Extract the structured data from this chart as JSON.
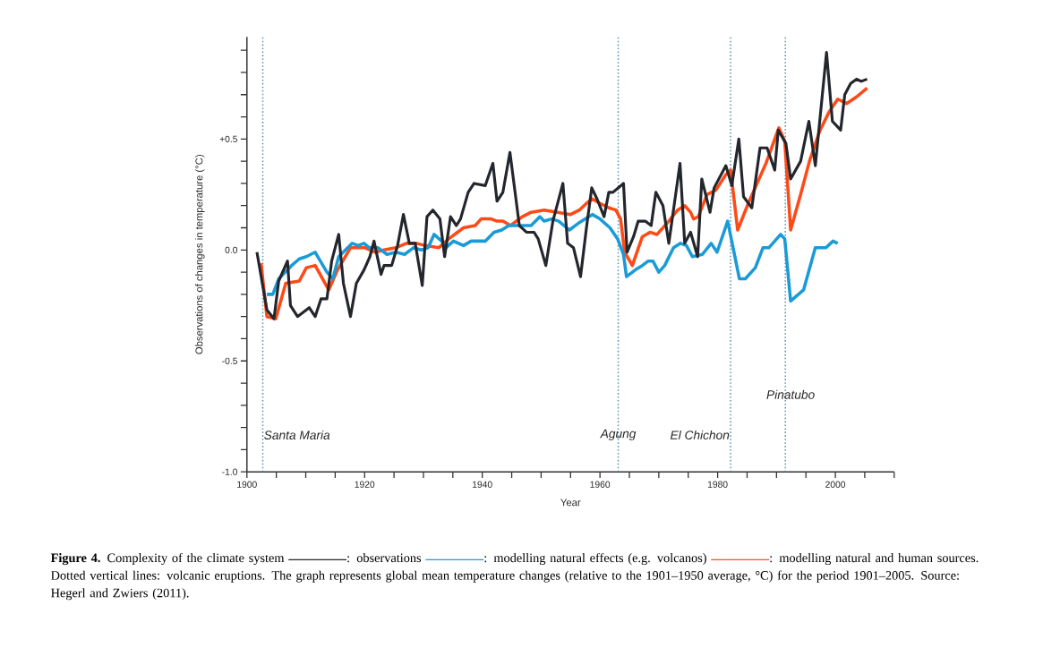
{
  "chart_data": {
    "type": "line",
    "xlabel": "Year",
    "ylabel": "Observations of changes in temperature (°C)",
    "xlim": [
      1900,
      2010
    ],
    "ylim": [
      -1.0,
      0.96
    ],
    "xticks": [
      1900,
      {
        "value": 1905,
        "label": null
      },
      {
        "value": 1910,
        "label": null
      },
      {
        "value": 1915,
        "label": null
      },
      1920,
      {
        "value": 1925,
        "label": null
      },
      {
        "value": 1930,
        "label": null
      },
      {
        "value": 1935,
        "label": null
      },
      1940,
      {
        "value": 1945,
        "label": null
      },
      {
        "value": 1950,
        "label": null
      },
      {
        "value": 1955,
        "label": null
      },
      1960,
      {
        "value": 1965,
        "label": null
      },
      {
        "value": 1970,
        "label": null
      },
      {
        "value": 1975,
        "label": null
      },
      1980,
      {
        "value": 1985,
        "label": null
      },
      {
        "value": 1990,
        "label": null
      },
      {
        "value": 1995,
        "label": null
      },
      2000,
      {
        "value": 2005,
        "label": null
      },
      {
        "value": 2010,
        "label": null
      }
    ],
    "yticks": [
      {
        "value": -1.0,
        "label": "-1.0"
      },
      {
        "value": -0.9,
        "label": null
      },
      {
        "value": -0.8,
        "label": null
      },
      {
        "value": -0.7,
        "label": null
      },
      {
        "value": -0.6,
        "label": null
      },
      {
        "value": -0.5,
        "label": "-0.5"
      },
      {
        "value": -0.4,
        "label": null
      },
      {
        "value": -0.3,
        "label": null
      },
      {
        "value": -0.2,
        "label": null
      },
      {
        "value": -0.1,
        "label": null
      },
      {
        "value": 0.0,
        "label": "0.0"
      },
      {
        "value": 0.1,
        "label": null
      },
      {
        "value": 0.2,
        "label": null
      },
      {
        "value": 0.3,
        "label": null
      },
      {
        "value": 0.4,
        "label": null
      },
      {
        "value": 0.5,
        "label": "+0.5"
      },
      {
        "value": 0.6,
        "label": null
      },
      {
        "value": 0.7,
        "label": null
      },
      {
        "value": 0.8,
        "label": null
      },
      {
        "value": 0.9,
        "label": null
      }
    ],
    "marker": "none",
    "line_style": "solid",
    "legend": "bottom",
    "series": [
      {
        "name": ": observations",
        "color": "#23262d",
        "x": [
          1901.7,
          1903.4,
          1904.6,
          1905.4,
          1906.9,
          1907.4,
          1908.6,
          1910.6,
          1911.6,
          1912.6,
          1913.6,
          1914.4,
          1915.6,
          1916.4,
          1917.6,
          1918.6,
          1919.9,
          1920.9,
          1921.6,
          1922.8,
          1923.3,
          1924.6,
          1925.6,
          1926.6,
          1927.6,
          1928.6,
          1929.8,
          1930.6,
          1931.6,
          1932.8,
          1933.6,
          1934.6,
          1935.6,
          1936.3,
          1937.6,
          1938.6,
          1940.5,
          1941.8,
          1942.5,
          1943.5,
          1944.7,
          1946.3,
          1947.5,
          1948.8,
          1949.5,
          1950.8,
          1952.0,
          1953.7,
          1954.5,
          1955.5,
          1956.7,
          1957.7,
          1958.6,
          1959.5,
          1960.7,
          1961.5,
          1962.2,
          1964.0,
          1964.6,
          1965.7,
          1966.5,
          1967.7,
          1968.7,
          1969.5,
          1970.7,
          1971.7,
          1973.6,
          1974.4,
          1975.4,
          1976.6,
          1977.3,
          1978.7,
          1979.4,
          1981.4,
          1982.4,
          1983.6,
          1984.4,
          1985.8,
          1987.2,
          1988.4,
          1989.7,
          1990.3,
          1991.6,
          1992.4,
          1994.1,
          1995.5,
          1996.6,
          1998.5,
          1999.5,
          2000.9,
          2001.6,
          2002.6,
          2003.6,
          2004.4,
          2005.4
        ],
        "values": [
          -0.01,
          -0.27,
          -0.31,
          -0.14,
          -0.05,
          -0.25,
          -0.3,
          -0.26,
          -0.3,
          -0.22,
          -0.22,
          -0.05,
          0.07,
          -0.15,
          -0.3,
          -0.15,
          -0.09,
          -0.03,
          0.04,
          -0.11,
          -0.07,
          -0.07,
          0.02,
          0.16,
          0.03,
          0.03,
          -0.16,
          0.15,
          0.18,
          0.14,
          -0.03,
          0.15,
          0.11,
          0.14,
          0.26,
          0.3,
          0.29,
          0.39,
          0.22,
          0.26,
          0.44,
          0.11,
          0.08,
          0.08,
          0.05,
          -0.07,
          0.13,
          0.3,
          0.03,
          0.01,
          -0.12,
          0.1,
          0.28,
          0.23,
          0.15,
          0.26,
          0.26,
          0.3,
          -0.01,
          0.06,
          0.13,
          0.13,
          0.11,
          0.26,
          0.2,
          0.03,
          0.39,
          0.03,
          0.08,
          -0.03,
          0.32,
          0.17,
          0.28,
          0.38,
          0.29,
          0.5,
          0.24,
          0.19,
          0.46,
          0.46,
          0.36,
          0.54,
          0.48,
          0.32,
          0.4,
          0.58,
          0.38,
          0.89,
          0.58,
          0.54,
          0.7,
          0.75,
          0.77,
          0.76,
          0.77
        ]
      },
      {
        "name": ": modelling natural effects (e.g. volcanos)",
        "color": "#1a9bd7",
        "x": [
          1903.4,
          1904.4,
          1905.4,
          1907.6,
          1908.9,
          1910.1,
          1911.6,
          1913.6,
          1914.6,
          1915.6,
          1917.9,
          1918.9,
          1919.9,
          1920.8,
          1922.3,
          1923.8,
          1925.3,
          1926.8,
          1928.3,
          1929.6,
          1930.8,
          1931.8,
          1933.1,
          1933.8,
          1935.1,
          1936.8,
          1938.1,
          1940.5,
          1942.0,
          1943.3,
          1944.5,
          1946.5,
          1948.3,
          1949.8,
          1950.5,
          1951.8,
          1953.0,
          1954.8,
          1956.3,
          1957.5,
          1958.7,
          1960.0,
          1961.7,
          1963.0,
          1964.0,
          1964.5,
          1966.0,
          1967.2,
          1968.2,
          1969.0,
          1970.0,
          1971.0,
          1972.5,
          1973.7,
          1974.7,
          1975.7,
          1977.4,
          1978.9,
          1979.9,
          1981.7,
          1983.7,
          1984.7,
          1986.4,
          1987.7,
          1988.7,
          1990.7,
          1991.4,
          1992.4,
          1994.6,
          1996.6,
          1998.4,
          1999.6,
          2000.4
        ],
        "values": [
          -0.2,
          -0.2,
          -0.13,
          -0.07,
          -0.04,
          -0.03,
          -0.01,
          -0.1,
          -0.13,
          -0.03,
          0.03,
          0.02,
          0.03,
          0.01,
          0.01,
          -0.02,
          -0.01,
          -0.02,
          0.01,
          0.0,
          0.01,
          0.07,
          0.04,
          0.01,
          0.04,
          0.02,
          0.04,
          0.04,
          0.08,
          0.09,
          0.11,
          0.11,
          0.11,
          0.15,
          0.13,
          0.14,
          0.13,
          0.09,
          0.12,
          0.14,
          0.16,
          0.14,
          0.1,
          0.05,
          -0.02,
          -0.12,
          -0.09,
          -0.07,
          -0.05,
          -0.05,
          -0.1,
          -0.07,
          0.01,
          0.03,
          0.02,
          -0.03,
          -0.02,
          0.03,
          -0.01,
          0.13,
          -0.13,
          -0.13,
          -0.08,
          0.01,
          0.01,
          0.07,
          0.05,
          -0.23,
          -0.18,
          0.01,
          0.01,
          0.04,
          0.03
        ]
      },
      {
        "name": ": modelling natural and human sources.",
        "color": "#ff4a17",
        "x": [
          1902.4,
          1903.4,
          1904.9,
          1906.6,
          1908.9,
          1910.1,
          1911.6,
          1913.9,
          1915.4,
          1917.6,
          1920.1,
          1921.8,
          1923.3,
          1925.3,
          1927.1,
          1928.8,
          1930.3,
          1932.6,
          1934.3,
          1936.8,
          1938.8,
          1939.8,
          1941.5,
          1942.5,
          1943.5,
          1944.8,
          1946.8,
          1948.3,
          1950.5,
          1952.8,
          1955.0,
          1956.5,
          1957.7,
          1958.7,
          1960.0,
          1961.5,
          1962.7,
          1963.5,
          1964.2,
          1965.5,
          1967.2,
          1968.5,
          1969.7,
          1971.7,
          1973.2,
          1974.4,
          1975.4,
          1975.9,
          1976.7,
          1978.2,
          1979.7,
          1981.4,
          1982.2,
          1983.4,
          1985.2,
          1986.7,
          1988.2,
          1990.4,
          1991.4,
          1992.4,
          1994.1,
          1995.6,
          1997.4,
          1998.9,
          2000.4,
          2001.9,
          2003.6,
          2005.4
        ],
        "values": [
          -0.06,
          -0.3,
          -0.31,
          -0.15,
          -0.14,
          -0.08,
          -0.07,
          -0.18,
          -0.09,
          0.01,
          0.01,
          -0.01,
          0.0,
          0.01,
          0.03,
          0.03,
          0.02,
          0.01,
          0.05,
          0.1,
          0.11,
          0.14,
          0.14,
          0.13,
          0.13,
          0.11,
          0.15,
          0.17,
          0.18,
          0.17,
          0.16,
          0.18,
          0.21,
          0.23,
          0.21,
          0.19,
          0.18,
          0.14,
          -0.01,
          -0.07,
          0.06,
          0.08,
          0.07,
          0.13,
          0.18,
          0.2,
          0.17,
          0.14,
          0.15,
          0.25,
          0.27,
          0.34,
          0.36,
          0.09,
          0.21,
          0.3,
          0.39,
          0.55,
          0.49,
          0.09,
          0.25,
          0.4,
          0.54,
          0.62,
          0.68,
          0.66,
          0.69,
          0.73
        ]
      }
    ],
    "ref_lines": [
      {
        "axis": "x",
        "value": 1902.7,
        "color": "#5b8fa9",
        "line_style": "dotted",
        "label": "Santa Maria"
      },
      {
        "axis": "x",
        "value": 1963.1,
        "color": "#5b8fa9",
        "line_style": "dotted",
        "label": "Agung"
      },
      {
        "axis": "x",
        "value": 1982.2,
        "color": "#5b8fa9",
        "line_style": "dotted",
        "label": "El Chichon"
      },
      {
        "axis": "x",
        "value": 1991.5,
        "color": "#5b8fa9",
        "line_style": "dotted",
        "label": "Pinatubo"
      }
    ],
    "annotations": [
      "**Figure 4.** Complexity of the climate system",
      "Dotted vertical lines: volcanic eruptions. The graph represents global mean temperature changes (relative to the 1901–1950 average, °C) for the period 1901–2005. Source: Hegerl and Zwiers (2011)."
    ]
  }
}
